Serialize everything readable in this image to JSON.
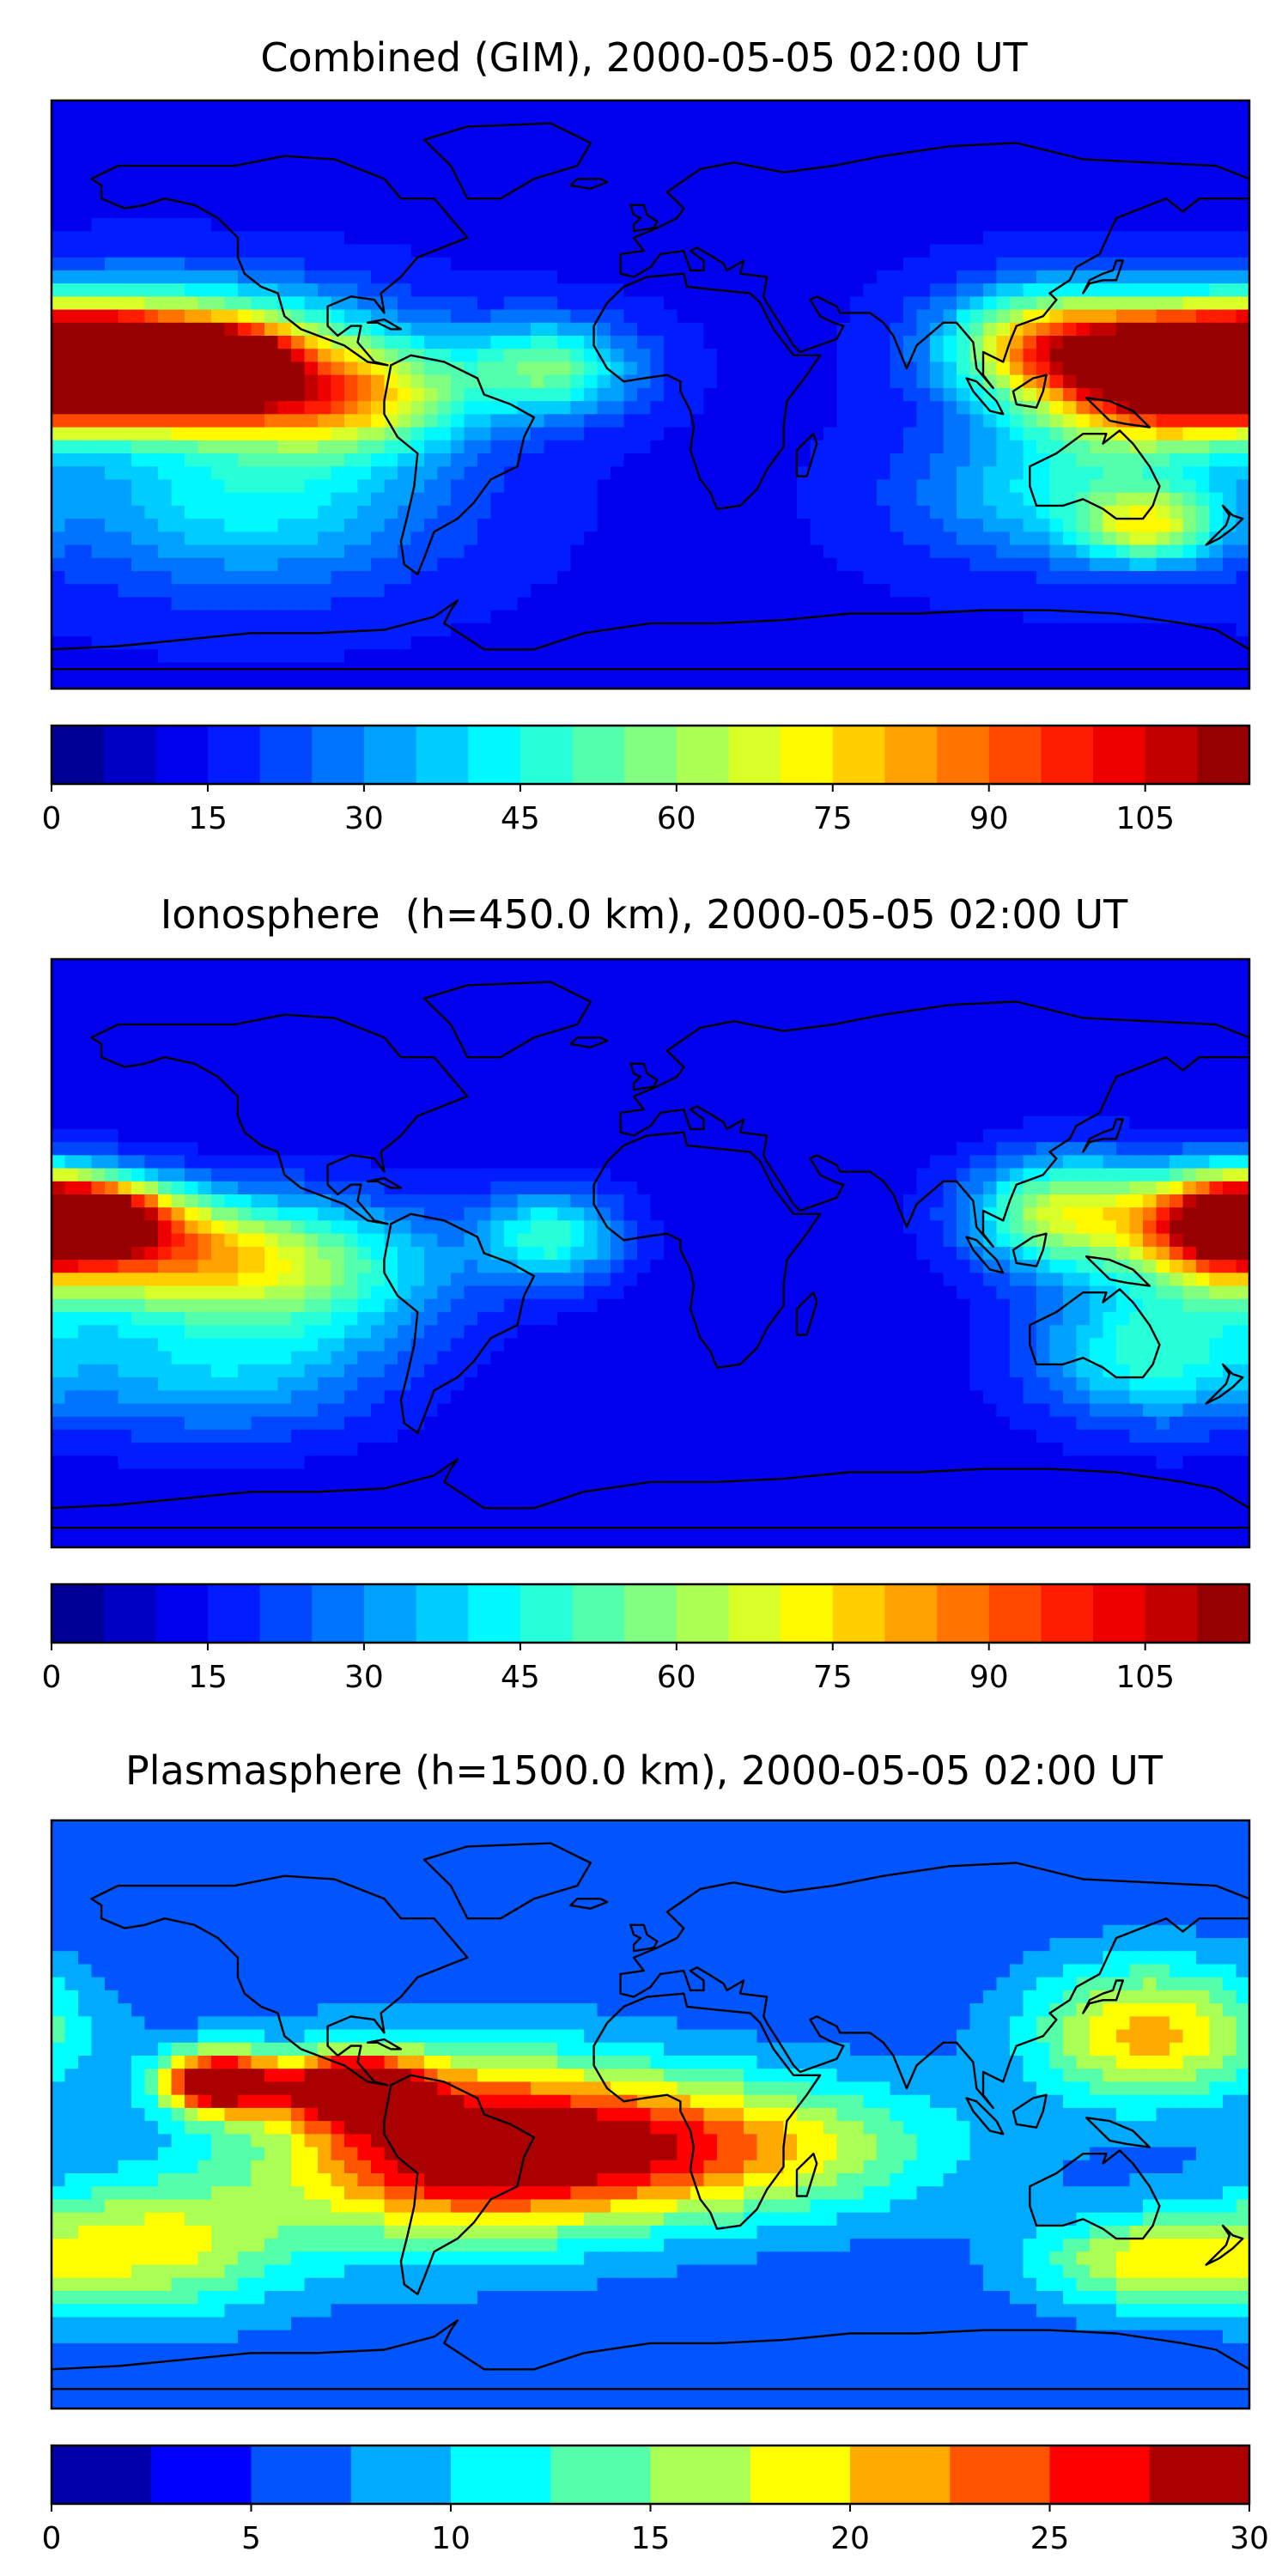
{
  "figure": {
    "panels": [
      {
        "title": "Combined (GIM), 2000-05-05 02:00 UT",
        "colorbar": {
          "min": 0,
          "max": 115,
          "step": 5,
          "ticks": [
            "0",
            "15",
            "30",
            "45",
            "60",
            "75",
            "90",
            "105"
          ],
          "tick_values": [
            0,
            15,
            30,
            45,
            60,
            75,
            90,
            105
          ]
        },
        "blobs": [
          {
            "lon": -165,
            "lat": 12,
            "amp": 105,
            "slon": 15,
            "slat": 7
          },
          {
            "lon": -130,
            "lat": 10,
            "amp": 95,
            "slon": 15,
            "slat": 7
          },
          {
            "lon": -150,
            "lat": -2,
            "amp": 70,
            "slon": 30,
            "slat": 8
          },
          {
            "lon": -150,
            "lat": 18,
            "amp": 60,
            "slon": 40,
            "slat": 12
          },
          {
            "lon": -90,
            "lat": 0,
            "amp": 55,
            "slon": 25,
            "slat": 12
          },
          {
            "lon": -30,
            "lat": 8,
            "amp": 40,
            "slon": 18,
            "slat": 10
          },
          {
            "lon": 120,
            "lat": 15,
            "amp": 65,
            "slon": 22,
            "slat": 12
          },
          {
            "lon": 165,
            "lat": 10,
            "amp": 90,
            "slon": 20,
            "slat": 10
          },
          {
            "lon": 150,
            "lat": 0,
            "amp": 55,
            "slon": 25,
            "slat": 14
          },
          {
            "lon": 150,
            "lat": -40,
            "amp": 45,
            "slon": 15,
            "slat": 8
          },
          {
            "lon": -120,
            "lat": -30,
            "amp": 30,
            "slon": 40,
            "slat": 20
          },
          {
            "lon": 120,
            "lat": -30,
            "amp": 25,
            "slon": 30,
            "slat": 15
          }
        ],
        "base": 14
      },
      {
        "title": "Ionosphere  (h=450.0 km), 2000-05-05 02:00 UT",
        "colorbar": {
          "min": 0,
          "max": 115,
          "step": 5,
          "ticks": [
            "0",
            "15",
            "30",
            "45",
            "60",
            "75",
            "90",
            "105"
          ],
          "tick_values": [
            0,
            15,
            30,
            45,
            60,
            75,
            90,
            105
          ]
        },
        "blobs": [
          {
            "lon": -170,
            "lat": 12,
            "amp": 85,
            "slon": 18,
            "slat": 8
          },
          {
            "lon": -150,
            "lat": 0,
            "amp": 60,
            "slon": 30,
            "slat": 12
          },
          {
            "lon": -100,
            "lat": -5,
            "amp": 35,
            "slon": 30,
            "slat": 15
          },
          {
            "lon": -30,
            "lat": 5,
            "amp": 35,
            "slon": 15,
            "slat": 10
          },
          {
            "lon": 125,
            "lat": 12,
            "amp": 55,
            "slon": 20,
            "slat": 12
          },
          {
            "lon": 170,
            "lat": 8,
            "amp": 75,
            "slon": 18,
            "slat": 12
          },
          {
            "lon": 150,
            "lat": -30,
            "amp": 35,
            "slon": 25,
            "slat": 15
          },
          {
            "lon": -130,
            "lat": -35,
            "amp": 25,
            "slon": 35,
            "slat": 15
          }
        ],
        "base": 12
      },
      {
        "title": "Plasmasphere (h=1500.0 km), 2000-05-05 02:00 UT",
        "colorbar": {
          "min": 0,
          "max": 30,
          "step": 2.5,
          "ticks": [
            "0",
            "5",
            "10",
            "15",
            "20",
            "25",
            "30"
          ],
          "tick_values": [
            0,
            5,
            10,
            15,
            20,
            25,
            30
          ]
        },
        "blobs": [
          {
            "lon": -130,
            "lat": 10,
            "amp": 26,
            "slon": 12,
            "slat": 7
          },
          {
            "lon": -90,
            "lat": 8,
            "amp": 25,
            "slon": 14,
            "slat": 7
          },
          {
            "lon": -60,
            "lat": -10,
            "amp": 20,
            "slon": 40,
            "slat": 20
          },
          {
            "lon": 10,
            "lat": -10,
            "amp": 17,
            "slon": 50,
            "slat": 15
          },
          {
            "lon": 150,
            "lat": 25,
            "amp": 15,
            "slon": 25,
            "slat": 15
          },
          {
            "lon": 150,
            "lat": -45,
            "amp": 12,
            "slon": 25,
            "slat": 10
          },
          {
            "lon": -150,
            "lat": -40,
            "amp": 12,
            "slon": 30,
            "slat": 15
          }
        ],
        "base": 6
      }
    ]
  }
}
